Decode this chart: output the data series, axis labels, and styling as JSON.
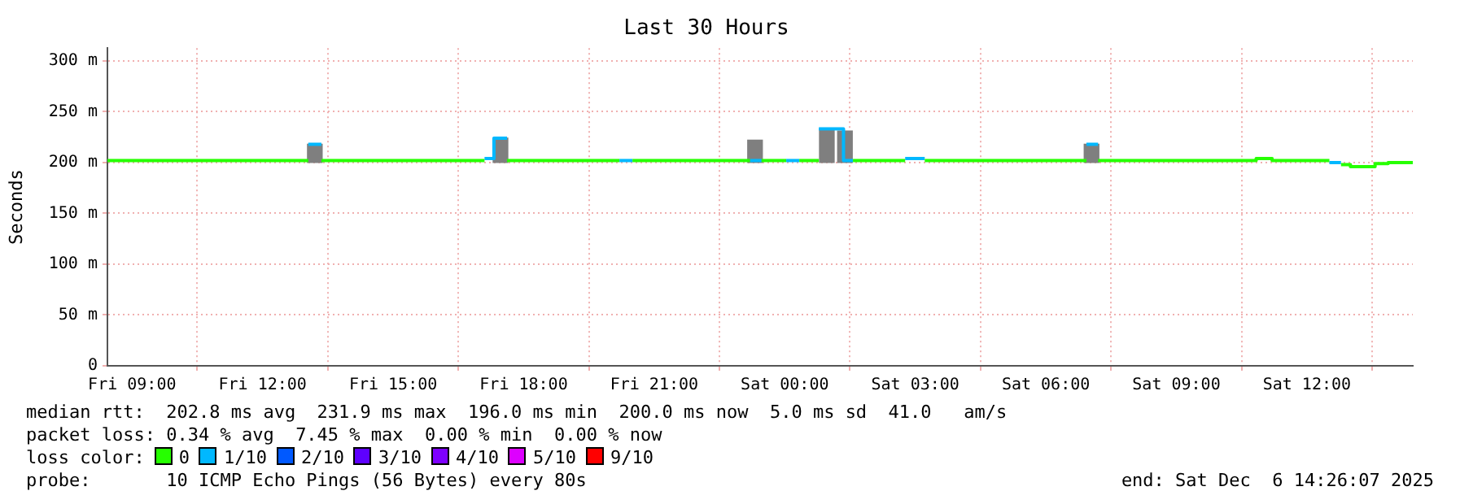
{
  "chart_data": {
    "type": "line",
    "title": "Last 30 Hours",
    "ylabel": "Seconds",
    "xlim": [
      "2025-12-05T08:26",
      "2025-12-06T14:26"
    ],
    "xticks": [
      {
        "value": "2025-12-05T09:00",
        "label": "Fri 09:00"
      },
      {
        "value": "2025-12-05T12:00",
        "label": "Fri 12:00"
      },
      {
        "value": "2025-12-05T15:00",
        "label": "Fri 15:00"
      },
      {
        "value": "2025-12-05T18:00",
        "label": "Fri 18:00"
      },
      {
        "value": "2025-12-05T21:00",
        "label": "Fri 21:00"
      },
      {
        "value": "2025-12-06T00:00",
        "label": "Sat 00:00"
      },
      {
        "value": "2025-12-06T03:00",
        "label": "Sat 03:00"
      },
      {
        "value": "2025-12-06T06:00",
        "label": "Sat 06:00"
      },
      {
        "value": "2025-12-06T09:00",
        "label": "Sat 09:00"
      },
      {
        "value": "2025-12-06T12:00",
        "label": "Sat 12:00"
      }
    ],
    "ylim": [
      0,
      312.5
    ],
    "yticks": [
      0,
      {
        "value": 50,
        "label": "50 m"
      },
      {
        "value": 100,
        "label": "100 m"
      },
      {
        "value": 150,
        "label": "150 m"
      },
      {
        "value": 200,
        "label": "200 m"
      },
      {
        "value": 250,
        "label": "250 m"
      },
      {
        "value": 300,
        "label": "300 m"
      }
    ],
    "grid": true,
    "legend": "bottom",
    "legend_title": "loss color:",
    "marker": "none",
    "series": [
      {
        "type": "bar",
        "color": "#7f7f7f",
        "x": [
          "2025-12-05T13:12",
          "2025-12-05T17:28",
          "2025-12-05T23:19",
          "2025-12-06T00:58",
          "2025-12-06T01:23",
          "2025-12-06T07:03"
        ],
        "base": [
          200,
          200,
          200,
          200,
          200,
          200
        ],
        "values": [
          18,
          24,
          22,
          33,
          31,
          18
        ]
      },
      {
        "name": "0",
        "color": "#26ff00",
        "x": [
          "2025-12-05T08:26",
          "2025-12-05T13:03",
          null,
          "2025-12-05T13:21",
          "2025-12-05T17:06",
          null,
          "2025-12-05T17:37",
          "2025-12-05T20:12",
          null,
          "2025-12-05T20:30",
          "2025-12-05T23:12",
          null,
          "2025-12-05T23:28",
          "2025-12-06T00:02",
          null,
          "2025-12-06T00:20",
          "2025-12-06T00:47",
          null,
          "2025-12-06T01:34",
          "2025-12-06T02:46",
          null,
          "2025-12-06T03:13",
          "2025-12-06T06:56",
          null,
          "2025-12-06T07:12",
          "2025-12-06T10:50",
          "2025-12-06T10:50",
          "2025-12-06T11:12",
          "2025-12-06T11:12",
          "2025-12-06T12:31",
          null,
          "2025-12-06T12:47",
          "2025-12-06T13:00",
          "2025-12-06T13:00",
          "2025-12-06T13:34",
          "2025-12-06T13:34",
          "2025-12-06T13:52",
          "2025-12-06T13:52",
          "2025-12-06T14:26"
        ],
        "values": [
          202,
          202,
          null,
          202,
          202,
          null,
          202,
          202,
          null,
          202,
          202,
          null,
          202,
          202,
          null,
          202,
          202,
          null,
          202,
          202,
          null,
          202,
          202,
          null,
          202,
          202,
          204,
          204,
          202,
          202,
          null,
          198,
          198,
          196,
          196,
          199,
          199,
          200,
          200
        ]
      },
      {
        "name": "1/10",
        "color": "#00b8ff",
        "x": [
          "2025-12-05T13:03",
          "2025-12-05T13:21",
          null,
          "2025-12-05T17:06",
          "2025-12-05T17:19",
          "2025-12-05T17:19",
          "2025-12-05T17:37",
          null,
          "2025-12-05T20:12",
          "2025-12-05T20:30",
          null,
          "2025-12-05T23:12",
          "2025-12-05T23:28",
          null,
          "2025-12-06T00:02",
          "2025-12-06T00:20",
          null,
          "2025-12-06T00:47",
          "2025-12-06T01:21",
          "2025-12-06T01:21",
          "2025-12-06T01:34",
          null,
          "2025-12-06T02:46",
          "2025-12-06T03:13",
          null,
          "2025-12-06T06:56",
          "2025-12-06T07:12",
          null,
          "2025-12-06T12:31",
          "2025-12-06T12:47"
        ],
        "values": [
          218,
          218,
          null,
          204,
          204,
          224,
          224,
          null,
          202,
          202,
          null,
          202,
          202,
          null,
          202,
          202,
          null,
          233,
          233,
          202,
          202,
          null,
          204,
          204,
          null,
          218,
          218,
          null,
          200,
          200
        ]
      },
      {
        "name": "2/10",
        "color": "#0059ff"
      },
      {
        "name": "3/10",
        "color": "#5e00ff"
      },
      {
        "name": "4/10",
        "color": "#7e00ff"
      },
      {
        "name": "5/10",
        "color": "#dd00ff"
      },
      {
        "name": "9/10",
        "color": "#ff0000"
      }
    ],
    "annotations": [
      "median rtt:  202.8 ms avg  231.9 ms max  196.0 ms min  200.0 ms now  5.0 ms sd  41.0   am/s",
      "packet loss: 0.34 % avg  7.45 % max  0.00 % min  0.00 % now",
      "probe:       10 ICMP Echo Pings (56 Bytes) every 80s",
      "end: Sat Dec  6 14:26:07 2025"
    ]
  }
}
